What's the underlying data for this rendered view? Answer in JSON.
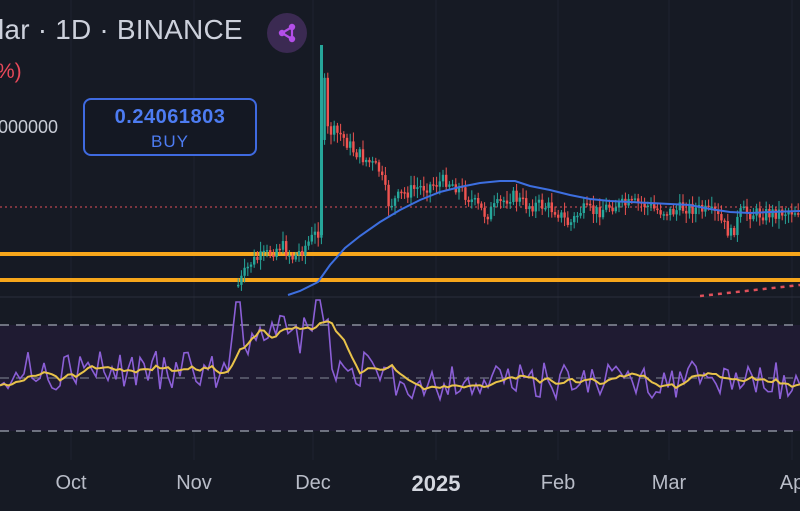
{
  "header": {
    "title": "lar · 1D · BINANCE",
    "change": "%)",
    "volume": "000000"
  },
  "order_box": {
    "price": "0.24061803",
    "label": "BUY"
  },
  "time_axis": [
    "Oct",
    "Nov",
    "Dec",
    "2025",
    "Feb",
    "Mar",
    "Ap"
  ],
  "colors": {
    "background": "#161a24",
    "rsi_panel": "#1f1b32",
    "up": "#26a69a",
    "down": "#ef5350",
    "ma_line": "#3d6fe0",
    "support_line": "#f7a61b",
    "rsi_line": "#8b5fd6",
    "rsi_ma": "#e8c34a",
    "buy_accent": "#3f6ae0",
    "change_text": "#e8495a"
  },
  "icons": {
    "header_badge": "share-node-icon"
  }
}
